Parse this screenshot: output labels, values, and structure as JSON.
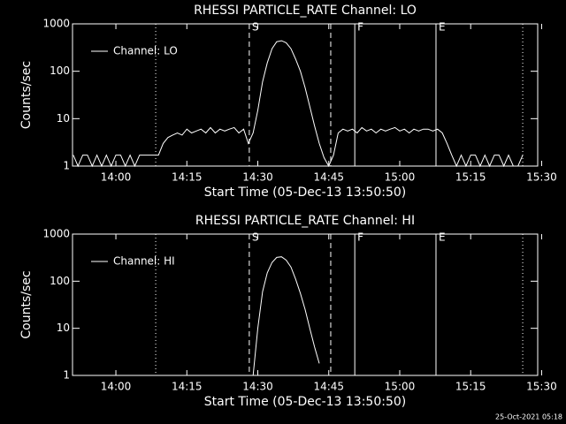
{
  "footer": "25-Oct-2021 05:18",
  "chart_data": [
    {
      "type": "line",
      "title": "RHESSI PARTICLE_RATE Channel: LO",
      "xlabel": "Start Time (05-Dec-13 13:50:50)",
      "ylabel": "Counts/sec",
      "xlim": [
        "13:50:50",
        "15:29:10"
      ],
      "xticks": [
        "14:00",
        "14:15",
        "14:30",
        "14:45",
        "15:00",
        "15:15",
        "15:30"
      ],
      "ylim": [
        1,
        1000
      ],
      "yticks": [
        1,
        10,
        100,
        1000
      ],
      "log_y": true,
      "legend": "upper left",
      "markers": [
        {
          "x": "14:08:25",
          "style": "dotted"
        },
        {
          "x": "14:28:12",
          "style": "dashed",
          "label": "S"
        },
        {
          "x": "14:45:25",
          "style": "dashed"
        },
        {
          "x": "14:50:30",
          "style": "solid",
          "label": "F"
        },
        {
          "x": "15:07:40",
          "style": "solid",
          "label": "E"
        },
        {
          "x": "15:26",
          "style": "dotted"
        }
      ],
      "x": [
        "13:51",
        "13:52",
        "13:53",
        "13:54",
        "13:55",
        "13:56",
        "13:57",
        "13:58",
        "13:59",
        "14:00",
        "14:01",
        "14:02",
        "14:03",
        "14:04",
        "14:05",
        "14:06",
        "14:07",
        "14:08",
        "14:09",
        "14:10",
        "14:11",
        "14:12",
        "14:13",
        "14:14",
        "14:15",
        "14:16",
        "14:17",
        "14:18",
        "14:19",
        "14:20",
        "14:21",
        "14:22",
        "14:23",
        "14:24",
        "14:25",
        "14:26",
        "14:27",
        "14:28",
        "14:29",
        "14:30",
        "14:31",
        "14:32",
        "14:33",
        "14:34",
        "14:35",
        "14:36",
        "14:37",
        "14:38",
        "14:39",
        "14:40",
        "14:41",
        "14:42",
        "14:43",
        "14:44",
        "14:45",
        "14:46",
        "14:47",
        "14:48",
        "14:49",
        "14:50",
        "14:51",
        "14:52",
        "14:53",
        "14:54",
        "14:55",
        "14:56",
        "14:57",
        "14:58",
        "14:59",
        "15:00",
        "15:01",
        "15:02",
        "15:03",
        "15:04",
        "15:05",
        "15:06",
        "15:07",
        "15:08",
        "15:09",
        "15:10",
        "15:11",
        "15:12",
        "15:13",
        "15:14",
        "15:15",
        "15:16",
        "15:17",
        "15:18",
        "15:19",
        "15:20",
        "15:21",
        "15:22",
        "15:23",
        "15:24",
        "15:25",
        "15:26"
      ],
      "series": [
        {
          "name": "Channel: LO",
          "color": "#ffffff",
          "values": [
            1.7,
            1,
            1.7,
            1.7,
            1,
            1.7,
            1,
            1.7,
            1,
            1.7,
            1.7,
            1,
            1.7,
            1,
            1.7,
            1.7,
            1.7,
            1.7,
            1.7,
            3,
            4,
            4.5,
            5,
            4.5,
            6,
            5,
            5.5,
            6,
            5,
            6.5,
            5,
            6,
            5.5,
            6,
            6.5,
            5,
            6,
            3,
            5,
            15,
            60,
            150,
            300,
            420,
            440,
            400,
            300,
            180,
            100,
            45,
            18,
            7,
            3,
            1.5,
            1,
            1.7,
            5,
            6,
            5.5,
            6,
            5,
            6.5,
            5.5,
            6,
            5,
            6,
            5.5,
            6,
            6.5,
            5.5,
            6,
            5,
            6,
            5.5,
            6,
            6,
            5.5,
            6,
            5,
            3,
            1.7,
            1,
            1.7,
            1,
            1.7,
            1.7,
            1,
            1.7,
            1,
            1.7,
            1.7,
            1,
            1.7,
            1,
            1,
            1.7
          ]
        }
      ]
    },
    {
      "type": "line",
      "title": "RHESSI PARTICLE_RATE Channel: HI",
      "xlabel": "Start Time (05-Dec-13 13:50:50)",
      "ylabel": "Counts/sec",
      "xlim": [
        "13:50:50",
        "15:29:10"
      ],
      "xticks": [
        "14:00",
        "14:15",
        "14:30",
        "14:45",
        "15:00",
        "15:15",
        "15:30"
      ],
      "ylim": [
        1,
        1000
      ],
      "yticks": [
        1,
        10,
        100,
        1000
      ],
      "log_y": true,
      "legend": "upper left",
      "markers": [
        {
          "x": "14:08:25",
          "style": "dotted"
        },
        {
          "x": "14:28:12",
          "style": "dashed",
          "label": "S"
        },
        {
          "x": "14:45:25",
          "style": "dashed"
        },
        {
          "x": "14:50:30",
          "style": "solid",
          "label": "F"
        },
        {
          "x": "15:07:40",
          "style": "solid",
          "label": "E"
        },
        {
          "x": "15:26",
          "style": "dotted"
        }
      ],
      "x": [
        "14:29",
        "14:30",
        "14:31",
        "14:32",
        "14:33",
        "14:34",
        "14:35",
        "14:36",
        "14:37",
        "14:38",
        "14:39",
        "14:40",
        "14:41",
        "14:42",
        "14:43"
      ],
      "series": [
        {
          "name": "Channel: HI",
          "color": "#ffffff",
          "values": [
            1,
            10,
            60,
            150,
            250,
            320,
            330,
            280,
            200,
            110,
            55,
            25,
            10,
            4,
            1.8
          ]
        }
      ]
    }
  ]
}
